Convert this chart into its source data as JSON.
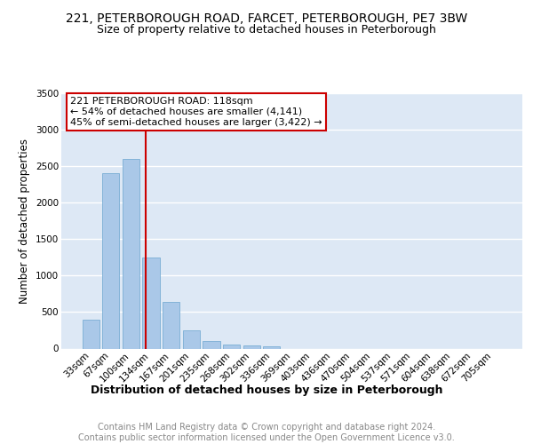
{
  "title1": "221, PETERBOROUGH ROAD, FARCET, PETERBOROUGH, PE7 3BW",
  "title2": "Size of property relative to detached houses in Peterborough",
  "xlabel": "Distribution of detached houses by size in Peterborough",
  "ylabel": "Number of detached properties",
  "categories": [
    "33sqm",
    "67sqm",
    "100sqm",
    "134sqm",
    "167sqm",
    "201sqm",
    "235sqm",
    "268sqm",
    "302sqm",
    "336sqm",
    "369sqm",
    "403sqm",
    "436sqm",
    "470sqm",
    "504sqm",
    "537sqm",
    "571sqm",
    "604sqm",
    "638sqm",
    "672sqm",
    "705sqm"
  ],
  "values": [
    390,
    2400,
    2600,
    1250,
    640,
    250,
    105,
    55,
    40,
    25,
    0,
    0,
    0,
    0,
    0,
    0,
    0,
    0,
    0,
    0,
    0
  ],
  "bar_color": "#aac8e8",
  "bar_edge_color": "#7aaed4",
  "vline_x": 2.75,
  "vline_color": "#cc0000",
  "annotation_text": "221 PETERBOROUGH ROAD: 118sqm\n← 54% of detached houses are smaller (4,141)\n45% of semi-detached houses are larger (3,422) →",
  "annotation_box_color": "#ffffff",
  "annotation_box_edge": "#cc0000",
  "ylim": [
    0,
    3500
  ],
  "yticks": [
    0,
    500,
    1000,
    1500,
    2000,
    2500,
    3000,
    3500
  ],
  "background_color": "#dde8f5",
  "grid_color": "#ffffff",
  "footer_text": "Contains HM Land Registry data © Crown copyright and database right 2024.\nContains public sector information licensed under the Open Government Licence v3.0.",
  "title1_fontsize": 10,
  "title2_fontsize": 9,
  "xlabel_fontsize": 9,
  "ylabel_fontsize": 8.5,
  "tick_fontsize": 7.5,
  "annot_fontsize": 8,
  "footer_fontsize": 7
}
